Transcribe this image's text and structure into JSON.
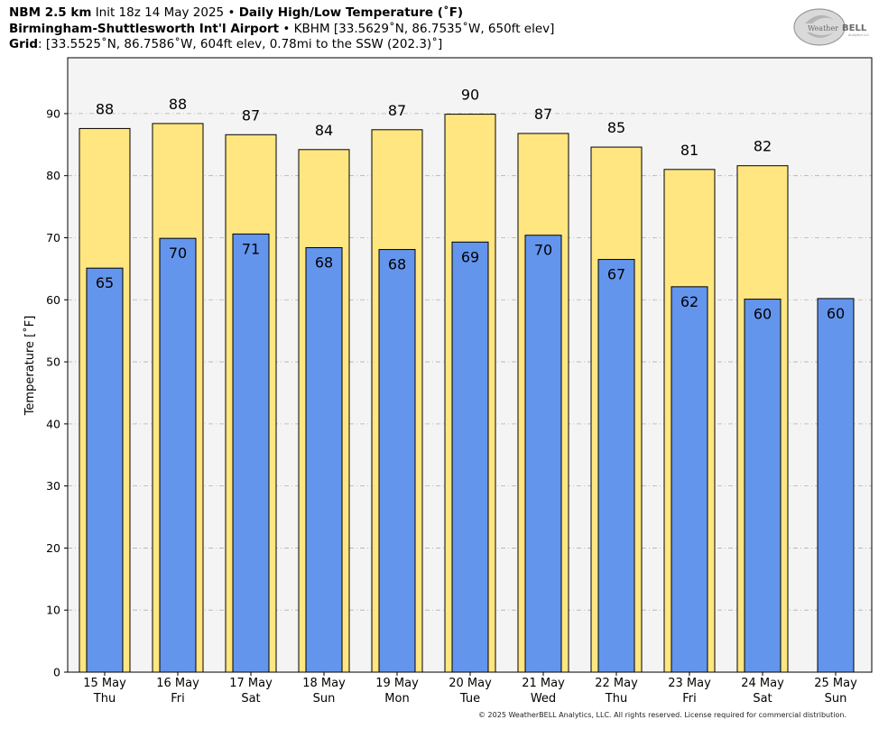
{
  "header": {
    "line1": {
      "model": "NBM 2.5 km",
      "init": "Init 18z 14 May 2025",
      "sep": "•",
      "product": "Daily High/Low Temperature (˚F)"
    },
    "line2": {
      "station": "Birmingham-Shuttlesworth Int'l Airport",
      "sep": "•",
      "details": "KBHM [33.5629˚N, 86.7535˚W, 650ft elev]"
    },
    "line3": {
      "label": "Grid",
      "details": ": [33.5525˚N, 86.7586˚W, 604ft elev, 0.78mi to the SSW (202.3)˚]"
    }
  },
  "logo": {
    "text_weather": "Weather",
    "text_bell": "BELL",
    "text_sub": "Analytics LLC"
  },
  "copyright": "© 2025 WeatherBELL Analytics, LLC. All rights reserved. License required for commercial distribution.",
  "chart_data": {
    "type": "bar",
    "title": "Daily High/Low Temperature (˚F)",
    "ylabel": "Temperature [˚F]",
    "xlabel": "",
    "ylim": [
      0,
      99
    ],
    "yticks": [
      0,
      10,
      20,
      30,
      40,
      50,
      60,
      70,
      80,
      90
    ],
    "grid": true,
    "categories": [
      {
        "date": "15 May",
        "day": "Thu"
      },
      {
        "date": "16 May",
        "day": "Fri"
      },
      {
        "date": "17 May",
        "day": "Sat"
      },
      {
        "date": "18 May",
        "day": "Sun"
      },
      {
        "date": "19 May",
        "day": "Mon"
      },
      {
        "date": "20 May",
        "day": "Tue"
      },
      {
        "date": "21 May",
        "day": "Wed"
      },
      {
        "date": "22 May",
        "day": "Thu"
      },
      {
        "date": "23 May",
        "day": "Fri"
      },
      {
        "date": "24 May",
        "day": "Sat"
      },
      {
        "date": "25 May",
        "day": "Sun"
      }
    ],
    "series": [
      {
        "name": "High",
        "color": "#FFE680",
        "values": [
          87.6,
          88.4,
          86.6,
          84.2,
          87.4,
          89.9,
          86.8,
          84.6,
          81.0,
          81.6,
          null
        ],
        "labels": [
          "88",
          "88",
          "87",
          "84",
          "87",
          "90",
          "87",
          "85",
          "81",
          "82",
          ""
        ]
      },
      {
        "name": "Low",
        "color": "#6495ED",
        "values": [
          65.1,
          69.9,
          70.6,
          68.4,
          68.1,
          69.3,
          70.4,
          66.5,
          62.1,
          60.1,
          60.2
        ],
        "labels": [
          "65",
          "70",
          "71",
          "68",
          "68",
          "69",
          "70",
          "67",
          "62",
          "60",
          "60"
        ]
      }
    ]
  }
}
